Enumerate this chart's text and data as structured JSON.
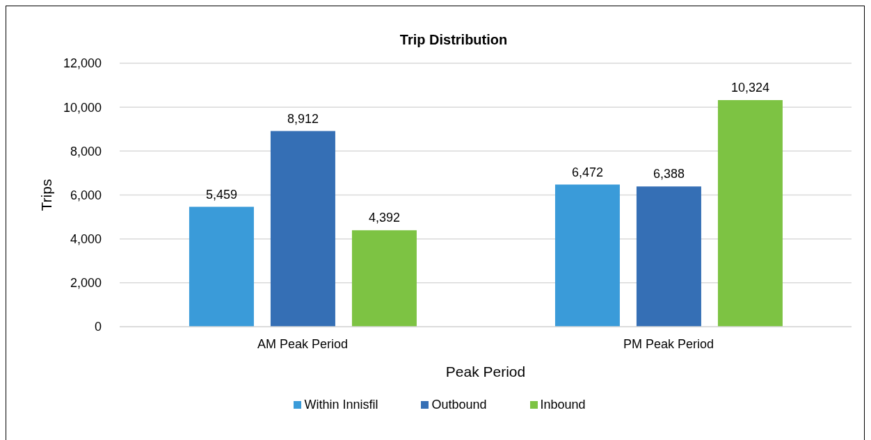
{
  "chart_data": {
    "type": "bar",
    "title": "Trip Distribution",
    "xlabel": "Peak Period",
    "ylabel": "Trips",
    "categories": [
      "AM Peak Period",
      "PM Peak Period"
    ],
    "series": [
      {
        "name": "Within Innisfil",
        "color": "#3a9bd9",
        "values": [
          5459,
          6472
        ],
        "value_labels": [
          "5,459",
          "6,472"
        ]
      },
      {
        "name": "Outbound",
        "color": "#356fb5",
        "values": [
          8912,
          6388
        ],
        "value_labels": [
          "8,912",
          "6,388"
        ]
      },
      {
        "name": "Inbound",
        "color": "#7dc343",
        "values": [
          4392,
          10324
        ],
        "value_labels": [
          "4,392",
          "10,324"
        ]
      }
    ],
    "ylim": [
      0,
      12000
    ],
    "yticks": [
      0,
      {
        "value": 2000,
        "label": "2,000"
      },
      {
        "value": 4000,
        "label": "4,000"
      },
      {
        "value": 6000,
        "label": "6,000"
      },
      {
        "value": 8000,
        "label": "8,000"
      },
      {
        "value": 10000,
        "label": "10,000"
      },
      {
        "value": 12000,
        "label": "12,000"
      }
    ],
    "grid": "y",
    "legend": "bottom"
  }
}
